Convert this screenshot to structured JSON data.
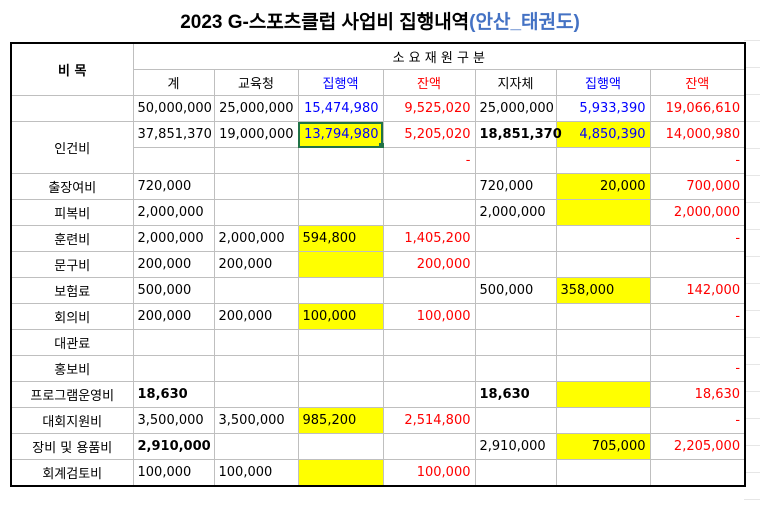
{
  "title": {
    "prefix": "2023 G-스포츠클럽 사업비 집행내역",
    "accent": "(안산_태권도)"
  },
  "header": {
    "item": "비 목",
    "group": "소 요 재 원 구 분",
    "cols": [
      "계",
      "교육청",
      "집행액",
      "잔액",
      "지자체",
      "집행액",
      "잔액"
    ]
  },
  "totals": [
    "50,000,000",
    "25,000,000",
    "15,474,980",
    "9,525,020",
    "25,000,000",
    "5,933,390",
    "19,066,610"
  ],
  "rows": [
    {
      "label": "인건비",
      "v": [
        "37,851,370",
        "19,000,000",
        "13,794,980",
        "5,205,020",
        "18,851,370",
        "4,850,390",
        "14,000,980"
      ],
      "v2": [
        "",
        "",
        "",
        "-",
        "",
        "",
        "-"
      ]
    },
    {
      "label": "출장여비",
      "v": [
        "720,000",
        "",
        "",
        "",
        "720,000",
        "20,000",
        "700,000"
      ]
    },
    {
      "label": "피복비",
      "v": [
        "2,000,000",
        "",
        "",
        "",
        "2,000,000",
        "",
        "2,000,000"
      ]
    },
    {
      "label": "훈련비",
      "v": [
        "2,000,000",
        "2,000,000",
        "594,800",
        "1,405,200",
        "",
        "",
        "-"
      ]
    },
    {
      "label": "문구비",
      "v": [
        "200,000",
        "200,000",
        "",
        "200,000",
        "",
        "",
        ""
      ]
    },
    {
      "label": "보험료",
      "v": [
        "500,000",
        "",
        "",
        "",
        "500,000",
        "358,000",
        "142,000"
      ]
    },
    {
      "label": "회의비",
      "v": [
        "200,000",
        "200,000",
        "100,000",
        "100,000",
        "",
        "",
        "-"
      ]
    },
    {
      "label": "대관료",
      "v": [
        "",
        "",
        "",
        "",
        "",
        "",
        ""
      ]
    },
    {
      "label": "홍보비",
      "v": [
        "",
        "",
        "",
        "",
        "",
        "",
        "-"
      ]
    },
    {
      "label": "프로그램운영비",
      "v": [
        "18,630",
        "",
        "",
        "",
        "18,630",
        "",
        "18,630"
      ]
    },
    {
      "label": "대회지원비",
      "v": [
        "3,500,000",
        "3,500,000",
        "985,200",
        "2,514,800",
        "",
        "",
        "-"
      ]
    },
    {
      "label": "장비 및 용품비",
      "v": [
        "2,910,000",
        "",
        "",
        "",
        "2,910,000",
        "705,000",
        "2,205,000"
      ]
    },
    {
      "label": "회계검토비",
      "v": [
        "100,000",
        "100,000",
        "",
        "100,000",
        "",
        "",
        ""
      ]
    }
  ],
  "colors": {
    "highlight": "#ffff00",
    "executed_text": "#0000ff",
    "balance_text": "#ff0000",
    "title_accent": "#4472c4",
    "selection": "#217346"
  }
}
